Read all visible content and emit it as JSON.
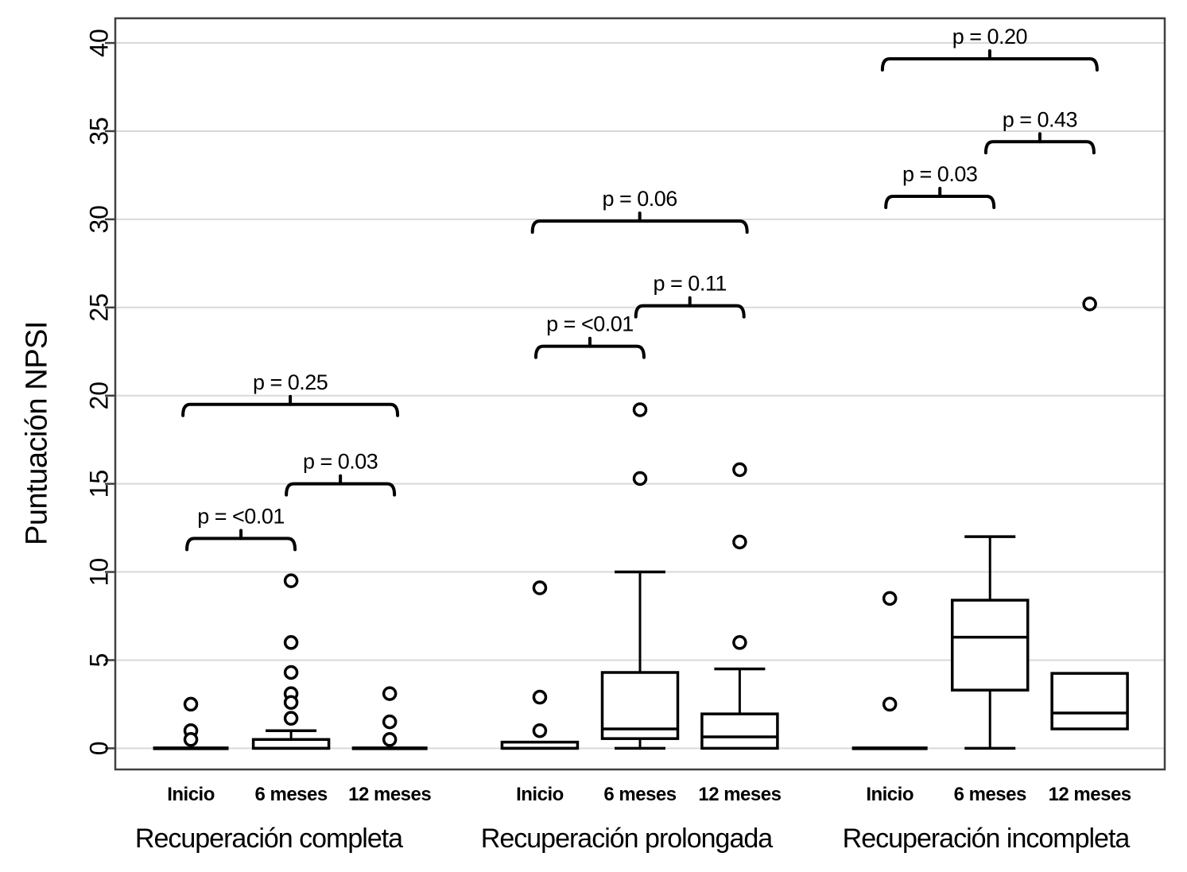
{
  "figure": {
    "background": "#ffffff",
    "colors": {
      "ink": "#000000",
      "axis": "#404040",
      "grid": "#d9d9d9",
      "box_fill": "#ffffff"
    }
  },
  "chart_data": {
    "type": "boxplot",
    "title": "",
    "xlabel": "",
    "ylabel": "Puntuación NPSI",
    "ylim": [
      -1.2,
      41.4
    ],
    "yticks": [
      0,
      5,
      10,
      15,
      20,
      25,
      30,
      35,
      40
    ],
    "grid": true,
    "legend": false,
    "groups": [
      {
        "label": "Recuperación completa",
        "categories": [
          "Inicio",
          "6 meses",
          "12 meses"
        ],
        "boxes": [
          {
            "q1": 0,
            "median": 0,
            "q3": 0,
            "whisker_low": null,
            "whisker_high": null,
            "outliers": [
              2.5,
              1.0,
              0.5
            ]
          },
          {
            "q1": 0,
            "median": 0,
            "q3": 0.5,
            "whisker_low": null,
            "whisker_high": 1.0,
            "outliers": [
              9.5,
              6.0,
              4.3,
              3.1,
              2.6,
              1.7
            ]
          },
          {
            "q1": 0,
            "median": 0,
            "q3": 0,
            "whisker_low": null,
            "whisker_high": null,
            "outliers": [
              3.1,
              1.5,
              0.5
            ]
          }
        ],
        "comparisons": [
          {
            "from": "Inicio",
            "to": "6 meses",
            "label": "p = <0.01",
            "bracket_y": 11.9
          },
          {
            "from": "6 meses",
            "to": "12 meses",
            "label": "p = 0.03",
            "bracket_y": 15.0
          },
          {
            "from": "Inicio",
            "to": "12 meses",
            "label": "p = 0.25",
            "bracket_y": 19.5
          }
        ]
      },
      {
        "label": "Recuperación prolongada",
        "categories": [
          "Inicio",
          "6 meses",
          "12 meses"
        ],
        "boxes": [
          {
            "q1": 0,
            "median": 0,
            "q3": 0.35,
            "whisker_low": null,
            "whisker_high": null,
            "outliers": [
              9.1,
              2.9,
              1.0
            ]
          },
          {
            "q1": 0.55,
            "median": 1.1,
            "q3": 4.3,
            "whisker_low": 0,
            "whisker_high": 10.0,
            "outliers": [
              19.2,
              15.3
            ]
          },
          {
            "q1": 0,
            "median": 0.65,
            "q3": 1.95,
            "whisker_low": null,
            "whisker_high": 4.5,
            "outliers": [
              15.8,
              11.7,
              6.0
            ]
          }
        ],
        "comparisons": [
          {
            "from": "Inicio",
            "to": "6 meses",
            "label": "p = <0.01",
            "bracket_y": 22.8
          },
          {
            "from": "6 meses",
            "to": "12 meses",
            "label": "p = 0.11",
            "bracket_y": 25.1
          },
          {
            "from": "Inicio",
            "to": "12 meses",
            "label": "p = 0.06",
            "bracket_y": 29.9
          }
        ]
      },
      {
        "label": "Recuperación incompleta",
        "categories": [
          "Inicio",
          "6 meses",
          "12 meses"
        ],
        "boxes": [
          {
            "q1": 0,
            "median": 0,
            "q3": 0,
            "whisker_low": null,
            "whisker_high": null,
            "outliers": [
              8.5,
              2.5
            ]
          },
          {
            "q1": 3.3,
            "median": 6.3,
            "q3": 8.4,
            "whisker_low": 0,
            "whisker_high": 12.0,
            "outliers": []
          },
          {
            "q1": 1.1,
            "median": 2.0,
            "q3": 4.25,
            "whisker_low": null,
            "whisker_high": null,
            "outliers": [
              25.2
            ]
          }
        ],
        "comparisons": [
          {
            "from": "Inicio",
            "to": "6 meses",
            "label": "p = 0.03",
            "bracket_y": 31.3
          },
          {
            "from": "6 meses",
            "to": "12 meses",
            "label": "p = 0.43",
            "bracket_y": 34.4
          },
          {
            "from": "Inicio",
            "to": "12 meses",
            "label": "p = 0.20",
            "bracket_y": 39.1
          }
        ]
      }
    ]
  }
}
